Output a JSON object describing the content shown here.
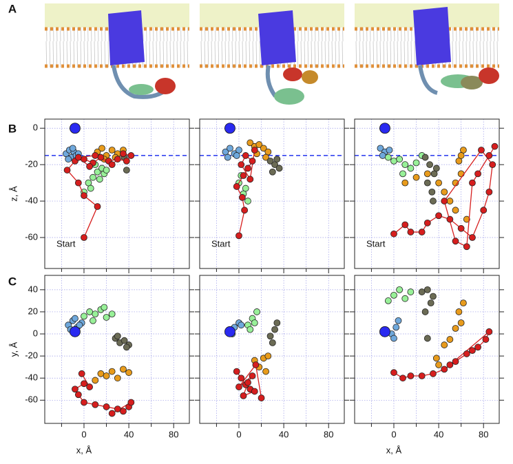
{
  "panel_labels": [
    "A",
    "B",
    "C"
  ],
  "chart_data": [
    {
      "type": "scatter",
      "ylabel": "z, Å",
      "annotation": "Start",
      "show_xticklabels": false,
      "show_yticklabels": true,
      "xlim": [
        -35,
        94
      ],
      "ylim": [
        -77,
        5
      ],
      "xticks": [
        0,
        40,
        80
      ],
      "minor_xticks": [
        -20,
        20,
        60
      ],
      "yticks": [
        0,
        -20,
        -40,
        -60
      ],
      "grid": true,
      "reference_line": {
        "y": -15,
        "color": "#2233ee"
      },
      "series": [
        {
          "color": "#6fa8dc",
          "x": [
            -16,
            -13,
            -11,
            -9,
            -7,
            -14,
            -10,
            -5
          ],
          "values": [
            -14,
            -12,
            -16,
            -13,
            -15,
            -17,
            -11,
            -14
          ]
        },
        {
          "color": "#6b6b55",
          "x": [
            38,
            36
          ],
          "values": [
            -23,
            -16
          ]
        },
        {
          "color": "#e89b1c",
          "x": [
            12,
            16,
            20,
            25,
            30,
            35,
            18,
            28
          ],
          "values": [
            -13,
            -11,
            -15,
            -12,
            -14,
            -12,
            -17,
            -16
          ]
        },
        {
          "color": "#98f098",
          "x": [
            0,
            4,
            8,
            12,
            16,
            18,
            6,
            10,
            14,
            20
          ],
          "values": [
            -35,
            -30,
            -27,
            -24,
            -22,
            -25,
            -33,
            -20,
            -28,
            -23
          ]
        },
        {
          "color": "#d61e1e",
          "line": true,
          "x": [
            0,
            12,
            0,
            -5,
            -15,
            -8,
            0,
            8,
            15,
            22,
            30,
            38,
            42,
            35,
            25,
            10,
            -5,
            5
          ],
          "values": [
            -60,
            -43,
            -37,
            -30,
            -23,
            -18,
            -17,
            -19,
            -16,
            -18,
            -17,
            -18,
            -15,
            -14,
            -20,
            -15,
            -16,
            -21
          ]
        },
        {
          "color": "#2a2af0",
          "big": true,
          "x": [
            -8
          ],
          "values": [
            0
          ]
        }
      ]
    },
    {
      "type": "scatter",
      "annotation": "Start",
      "show_xticklabels": false,
      "show_yticklabels": false,
      "xlim": [
        -35,
        94
      ],
      "ylim": [
        -77,
        5
      ],
      "xticks": [
        0,
        40,
        80
      ],
      "minor_xticks": [
        -20,
        20,
        60
      ],
      "yticks": [
        0,
        -20,
        -40,
        -60
      ],
      "grid": true,
      "reference_line": {
        "y": -15,
        "color": "#2233ee"
      },
      "series": [
        {
          "color": "#6fa8dc",
          "x": [
            -12,
            -8,
            -4,
            0,
            -10,
            -2
          ],
          "values": [
            -13,
            -11,
            -14,
            -12,
            -16,
            -15
          ]
        },
        {
          "color": "#e89b1c",
          "x": [
            10,
            14,
            18,
            22,
            26,
            16,
            24
          ],
          "values": [
            -8,
            -10,
            -9,
            -11,
            -13,
            -14,
            -16
          ]
        },
        {
          "color": "#6b6b55",
          "x": [
            28,
            32,
            36,
            30,
            34
          ],
          "values": [
            -18,
            -20,
            -22,
            -24,
            -17
          ]
        },
        {
          "color": "#98f098",
          "x": [
            0,
            4,
            8,
            2,
            6
          ],
          "values": [
            -30,
            -36,
            -40,
            -26,
            -33
          ]
        },
        {
          "color": "#d61e1e",
          "line": true,
          "x": [
            0,
            5,
            3,
            -2,
            4,
            8,
            12,
            6,
            2,
            10,
            14
          ],
          "values": [
            -59,
            -45,
            -38,
            -32,
            -26,
            -22,
            -18,
            -15,
            -20,
            -28,
            -12
          ]
        },
        {
          "color": "#2a2af0",
          "big": true,
          "x": [
            -8
          ],
          "values": [
            0
          ]
        }
      ]
    },
    {
      "type": "scatter",
      "annotation": "Start",
      "show_xticklabels": false,
      "show_yticklabels": false,
      "xlim": [
        -35,
        94
      ],
      "ylim": [
        -77,
        5
      ],
      "xticks": [
        0,
        40,
        80
      ],
      "minor_xticks": [
        -20,
        20,
        60
      ],
      "yticks": [
        0,
        -20,
        -40,
        -60
      ],
      "grid": true,
      "reference_line": {
        "y": -15,
        "color": "#2233ee"
      },
      "series": [
        {
          "color": "#6fa8dc",
          "x": [
            -12,
            -8,
            -4,
            -10
          ],
          "values": [
            -11,
            -13,
            -12,
            -15
          ]
        },
        {
          "color": "#98f098",
          "x": [
            -5,
            0,
            5,
            10,
            15,
            20,
            25,
            8
          ],
          "values": [
            -16,
            -18,
            -17,
            -20,
            -22,
            -19,
            -15,
            -25
          ]
        },
        {
          "color": "#6b6b55",
          "x": [
            28,
            32,
            36,
            30,
            34,
            38,
            35
          ],
          "values": [
            -16,
            -20,
            -25,
            -30,
            -35,
            -22,
            -40
          ]
        },
        {
          "color": "#e89b1c",
          "x": [
            10,
            20,
            30,
            40,
            45,
            50,
            55,
            60,
            58,
            62,
            55,
            65,
            60
          ],
          "values": [
            -30,
            -27,
            -25,
            -30,
            -35,
            -40,
            -30,
            -25,
            -18,
            -12,
            -45,
            -50,
            -15
          ]
        },
        {
          "color": "#d61e1e",
          "line": true,
          "x": [
            0,
            10,
            15,
            25,
            30,
            40,
            50,
            60,
            70,
            80,
            85,
            88,
            78,
            45,
            55,
            65,
            70,
            75,
            85,
            90
          ],
          "values": [
            -58,
            -53,
            -57,
            -57,
            -52,
            -48,
            -50,
            -55,
            -60,
            -45,
            -35,
            -20,
            -12,
            -40,
            -62,
            -65,
            -30,
            -25,
            -15,
            -10
          ]
        },
        {
          "color": "#2a2af0",
          "big": true,
          "x": [
            -8
          ],
          "values": [
            0
          ]
        }
      ]
    },
    {
      "type": "scatter",
      "ylabel": "y, Å",
      "xlabel": "x, Å",
      "show_xticklabels": true,
      "show_yticklabels": true,
      "xlim": [
        -35,
        94
      ],
      "ylim": [
        -81,
        53
      ],
      "xticks": [
        0,
        40,
        80
      ],
      "minor_xticks": [
        -20,
        20,
        60
      ],
      "yticks": [
        40,
        20,
        0,
        -20,
        -40,
        -60
      ],
      "grid": true,
      "series": [
        {
          "color": "#6fa8dc",
          "x": [
            -14,
            -10,
            -6,
            -2,
            -12,
            -8,
            -4
          ],
          "values": [
            8,
            12,
            6,
            10,
            4,
            14,
            8
          ]
        },
        {
          "color": "#98f098",
          "x": [
            0,
            5,
            10,
            15,
            20,
            25,
            8,
            18
          ],
          "values": [
            16,
            20,
            18,
            22,
            15,
            18,
            12,
            24
          ]
        },
        {
          "color": "#6b6b55",
          "x": [
            28,
            32,
            36,
            40,
            30,
            38
          ],
          "values": [
            -4,
            -8,
            -6,
            -10,
            -2,
            -12
          ]
        },
        {
          "color": "#e89b1c",
          "x": [
            10,
            15,
            20,
            25,
            30,
            35,
            40
          ],
          "values": [
            -42,
            -36,
            -38,
            -34,
            -40,
            -32,
            -35
          ]
        },
        {
          "color": "#d61e1e",
          "line": true,
          "x": [
            -2,
            5,
            0,
            -8,
            -5,
            0,
            10,
            20,
            30,
            35,
            40,
            42,
            25
          ],
          "values": [
            -36,
            -48,
            -45,
            -50,
            -55,
            -62,
            -64,
            -66,
            -68,
            -70,
            -66,
            -62,
            -72
          ]
        },
        {
          "color": "#2a2af0",
          "big": true,
          "x": [
            -8
          ],
          "values": [
            2
          ]
        }
      ]
    },
    {
      "type": "scatter",
      "show_xticklabels": true,
      "show_yticklabels": false,
      "xlim": [
        -35,
        94
      ],
      "ylim": [
        -81,
        53
      ],
      "xticks": [
        0,
        40,
        80
      ],
      "minor_xticks": [
        -20,
        20,
        60
      ],
      "yticks": [
        40,
        20,
        0,
        -20,
        -40,
        -60
      ],
      "grid": true,
      "series": [
        {
          "color": "#6fa8dc",
          "x": [
            -8,
            -4,
            0,
            -6,
            2
          ],
          "values": [
            2,
            6,
            10,
            0,
            8
          ]
        },
        {
          "color": "#98f098",
          "x": [
            8,
            12,
            16,
            10,
            14
          ],
          "values": [
            8,
            14,
            20,
            4,
            10
          ]
        },
        {
          "color": "#6b6b55",
          "x": [
            28,
            32,
            34,
            30
          ],
          "values": [
            -2,
            4,
            10,
            -8
          ]
        },
        {
          "color": "#e89b1c",
          "x": [
            14,
            18,
            22,
            26,
            24
          ],
          "values": [
            -24,
            -30,
            -22,
            -20,
            -34
          ]
        },
        {
          "color": "#d61e1e",
          "line": true,
          "x": [
            -2,
            2,
            6,
            10,
            14,
            4,
            8,
            12,
            0,
            15,
            20
          ],
          "values": [
            -34,
            -40,
            -46,
            -50,
            -52,
            -56,
            -44,
            -38,
            -48,
            -28,
            -58
          ]
        },
        {
          "color": "#2a2af0",
          "big": true,
          "x": [
            -8
          ],
          "values": [
            2
          ]
        }
      ]
    },
    {
      "type": "scatter",
      "xlabel": "x, Å",
      "show_xticklabels": true,
      "show_yticklabels": false,
      "xlim": [
        -35,
        94
      ],
      "ylim": [
        -81,
        53
      ],
      "xticks": [
        0,
        40,
        80
      ],
      "minor_xticks": [
        -20,
        20,
        60
      ],
      "yticks": [
        40,
        20,
        0,
        -20,
        -40,
        -60
      ],
      "grid": true,
      "series": [
        {
          "color": "#6fa8dc",
          "x": [
            -2,
            2,
            4,
            0
          ],
          "values": [
            0,
            6,
            12,
            -4
          ]
        },
        {
          "color": "#98f098",
          "x": [
            -5,
            0,
            5,
            10,
            15
          ],
          "values": [
            30,
            35,
            40,
            32,
            38
          ]
        },
        {
          "color": "#6b6b55",
          "x": [
            25,
            30,
            35,
            28,
            33,
            30
          ],
          "values": [
            38,
            40,
            34,
            20,
            28,
            -4
          ]
        },
        {
          "color": "#e89b1c",
          "x": [
            38,
            45,
            50,
            55,
            60,
            58,
            62,
            40
          ],
          "values": [
            -22,
            -10,
            -5,
            5,
            10,
            20,
            28,
            -28
          ]
        },
        {
          "color": "#d61e1e",
          "line": true,
          "x": [
            0,
            8,
            15,
            25,
            35,
            45,
            55,
            65,
            75,
            82,
            85,
            50,
            70
          ],
          "values": [
            -35,
            -40,
            -38,
            -38,
            -36,
            -32,
            -25,
            -18,
            -12,
            -5,
            2,
            -28,
            -15
          ]
        },
        {
          "color": "#2a2af0",
          "big": true,
          "x": [
            -8
          ],
          "values": [
            2
          ]
        }
      ]
    }
  ]
}
